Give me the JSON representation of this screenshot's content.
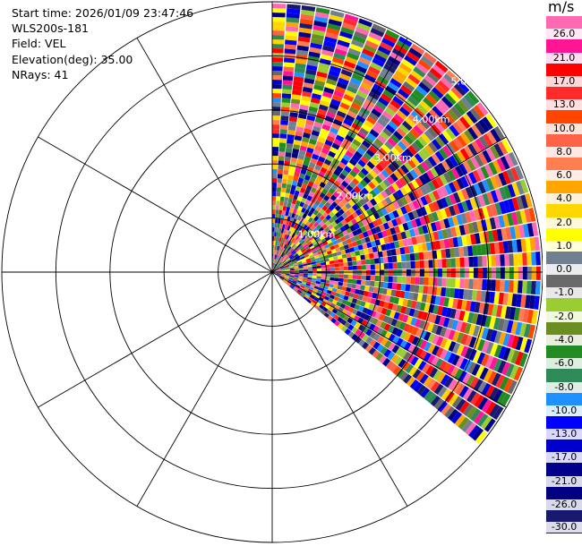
{
  "header": {
    "start_time": "Start time: 2026/01/09 23:47:46",
    "instrument": "WLS200s-181",
    "field": "Field: VEL",
    "elevation": "Elevation(deg): 35.00",
    "nrays": "NRays: 41"
  },
  "chart_data": {
    "type": "heatmap",
    "subtype": "radar-ppi-sector",
    "start_azimuth_deg": 0,
    "end_azimuth_deg": 130,
    "nrays": 41,
    "range_rings_km": [
      1.0,
      2.0,
      3.0,
      4.0,
      5.0
    ],
    "range_ring_labels": [
      "1.00km",
      "2.00km",
      "3.00km",
      "4.00km",
      "5.00km"
    ],
    "spoke_interval_deg": 30,
    "colorbar": {
      "unit": "m/s",
      "tick_labels": [
        "26.0",
        "21.0",
        "17.0",
        "13.0",
        "10.0",
        "8.0",
        "6.0",
        "4.0",
        "2.0",
        "1.0",
        "0.0",
        "-1.0",
        "-2.0",
        "-4.0",
        "-6.0",
        "-8.0",
        "-10.0",
        "-13.0",
        "-17.0",
        "-21.0",
        "-26.0",
        "-30.0"
      ],
      "colors": [
        "#ff69b4",
        "#ff1493",
        "#ff0000",
        "#ff2a2a",
        "#ff4500",
        "#ff6347",
        "#ff7f50",
        "#ffa500",
        "#ffd700",
        "#ffff00",
        "#708090",
        "#696969",
        "#9acd32",
        "#6b8e23",
        "#228b22",
        "#2e8b57",
        "#1e90ff",
        "#0000ff",
        "#0000cd",
        "#00008b",
        "#000080",
        "#191970"
      ]
    }
  }
}
